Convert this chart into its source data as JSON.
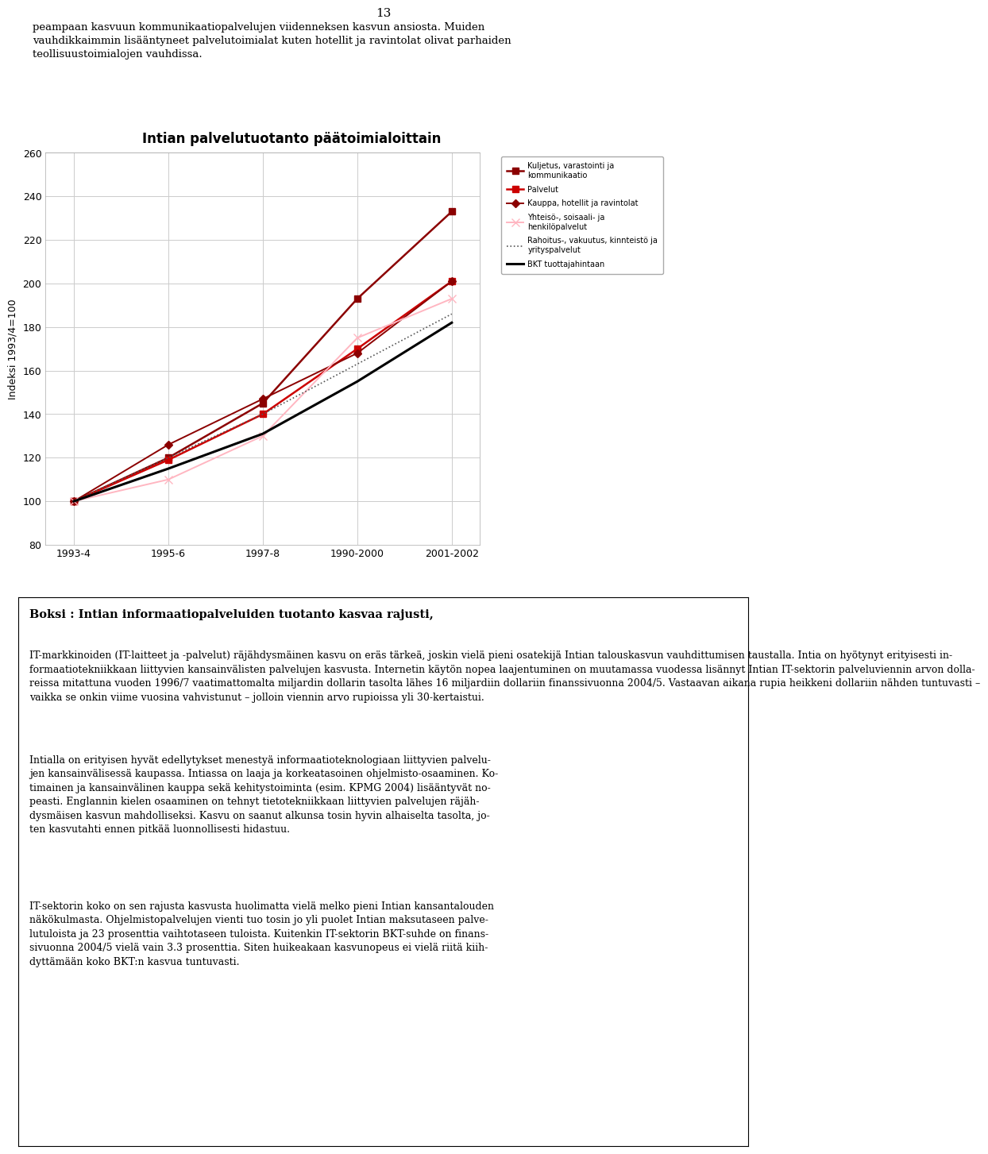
{
  "title": "Intian palvelutuotanto päätoimialoittain",
  "ylabel": "Indeksi 1993/4=100",
  "x_labels": [
    "1993-4",
    "1995-6",
    "1997-8",
    "1990-2000",
    "2001-2002"
  ],
  "x_positions": [
    0,
    1,
    2,
    3,
    4
  ],
  "ylim": [
    80,
    260
  ],
  "yticks": [
    80,
    100,
    120,
    140,
    160,
    180,
    200,
    220,
    240,
    260
  ],
  "series": [
    {
      "label": "Kuljetus, varastointi ja\nkommunikaatio",
      "color": "#8B0000",
      "linewidth": 1.8,
      "marker": "s",
      "markersize": 6,
      "linestyle": "-",
      "values": [
        100,
        120,
        145,
        193,
        233
      ]
    },
    {
      "label": "Palvelut",
      "color": "#CC0000",
      "linewidth": 1.8,
      "marker": "s",
      "markersize": 6,
      "linestyle": "-",
      "values": [
        100,
        119,
        140,
        170,
        201
      ]
    },
    {
      "label": "Kauppa, hotellit ja ravintolat",
      "color": "#8B0000",
      "linewidth": 1.4,
      "marker": "D",
      "markersize": 5,
      "linestyle": "-",
      "values": [
        100,
        126,
        147,
        168,
        201
      ]
    },
    {
      "label": "Yhteisö-, soisaali- ja\nhenkilöpalvelut",
      "color": "#FFB6C1",
      "linewidth": 1.4,
      "marker": "x",
      "markersize": 7,
      "linestyle": "-",
      "values": [
        100,
        110,
        130,
        175,
        193
      ]
    },
    {
      "label": "Rahoitus-, vakuutus, kinnteistö ja\nyrityspalvelut",
      "color": "#555555",
      "linewidth": 1.2,
      "marker": "None",
      "markersize": 0,
      "linestyle": ":",
      "values": [
        100,
        120,
        140,
        163,
        186
      ]
    },
    {
      "label": "BKT tuottajahintaan",
      "color": "#000000",
      "linewidth": 2.2,
      "marker": "None",
      "markersize": 0,
      "linestyle": "-",
      "values": [
        100,
        115,
        131,
        155,
        182
      ]
    }
  ],
  "header_text": "peampaan kasvuun kommunikaatiopalvelujen viidenneksen kasvun ansiosta. Muiden\nvauhdikkaimmin lisääntyneet palvelutoimialat kuten hotellit ja ravintolat olivat parhaiden\nteollisuustoimialojen vauhdissa.",
  "page_number": "13",
  "boksi_title": "Boksi : Intian informaatiopalveluiden tuotanto kasvaa rajusti,",
  "boksi_body_paragraphs": [
    "IT-markkinoiden (IT-laitteet ja -palvelut) räjähdysmäinen kasvu on eräs tärkeä, joskin vielä pieni osatekijä Intian talouskasvun vauhdittumisen taustalla. Intia on hyötynyt erityisesti in-\nformaatiotekniikkaan liittyvien kansainvälisten palvelujen kasvusta. Internetin käytön nopea laajentuminen on muutamassa vuodessa lisännyt Intian IT-sektorin palveluviennin arvon dolla-\nreissa mitattuna vuoden 1996/7 vaatimattomalta miljardin dollarin tasolta lähes 16 miljardiin dollariin finanssivuonna 2004/5. Vastaavan aikana rupia heikkeni dollariin nähden tuntuvasti –\nvaikka se onkin viime vuosina vahvistunut – jolloin viennin arvo rupioissa yli 30-kertaistui.",
    "Intialla on erityisen hyvät edellytykset menestyä informaatioteknologiaan liittyvien palvelu-\njen kansainvälisessä kaupassa. Intiassa on laaja ja korkeatasoinen ohjelmisto-osaaminen. Ko-\ntimainen ja kansainvälinen kauppa sekä kehitystoiminta (esim. KPMG 2004) lisääntyvät no-\npeasti. Englannin kielen osaaminen on tehnyt tietotekniikkaan liittyvien palvelujen räjäh-\ndysmäisen kasvun mahdolliseksi. Kasvu on saanut alkunsa tosin hyvin alhaiselta tasolta, jo-\nten kasvutahti ennen pitkää luonnollisesti hidastuu.",
    "IT-sektorin koko on sen rajusta kasvusta huolimatta vielä melko pieni Intian kansantalouden\nnäkökulmasta. Ohjelmistopalvelujen vienti tuo tosin jo yli puolet Intian maksutaseen palve-\nlutuloista ja 23 prosenttia vaihtotaseen tuloista. Kuitenkin IT-sektorin BKT-suhde on finans-\nsivuonna 2004/5 vielä vain 3.3 prosenttia. Siten huikeakaan kasvunopeus ei vielä riitä kiih-\ndyttämään koko BKT:n kasvua tuntuvasti."
  ],
  "background_color": "#ffffff",
  "grid_color": "#cccccc",
  "fig_width": 9.6,
  "fig_height": 14.96
}
